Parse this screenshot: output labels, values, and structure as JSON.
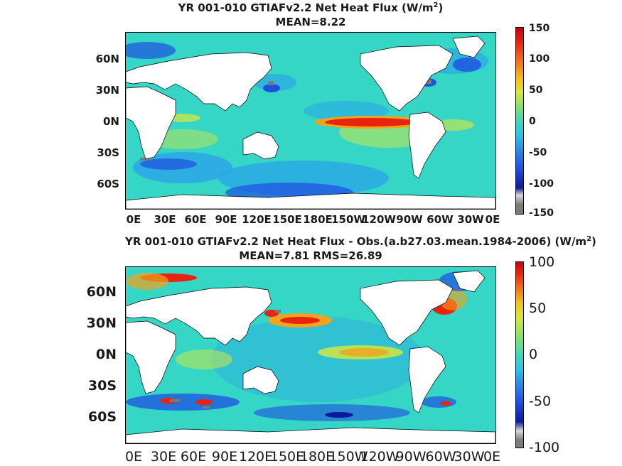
{
  "panels": [
    {
      "title_main": "YR 001-010 GTIAFv2.2  Net Heat Flux (W/m",
      "title_sup": "2",
      "title_end": ")",
      "subtitle": "MEAN=8.22",
      "lat_labels": [
        "60N",
        "30N",
        "0N",
        "30S",
        "60S"
      ],
      "lon_labels": [
        "0E",
        "30E",
        "60E",
        "90E",
        "120E",
        "150E",
        "180E",
        "150W",
        "120W",
        "90W",
        "60W",
        "30W",
        "0E"
      ],
      "colorbar_labels": [
        "150",
        "100",
        "50",
        "0",
        "-50",
        "-100",
        "-150"
      ],
      "colorbar_range": [
        -150,
        150
      ]
    },
    {
      "title_main": "YR 001-010 GTIAFv2.2  Net Heat Flux - Obs.(a.b27.03.mean.1984-2006) (W/m",
      "title_sup": "2",
      "title_end": ")",
      "subtitle": "MEAN=7.81 RMS=26.89",
      "lat_labels": [
        "60N",
        "30N",
        "0N",
        "30S",
        "60S"
      ],
      "lon_labels": [
        "0E",
        "30E",
        "60E",
        "90E",
        "120E",
        "150E",
        "180E",
        "150W",
        "120W",
        "90W",
        "60W",
        "30W",
        "0E"
      ],
      "colorbar_labels": [
        "100",
        "50",
        "0",
        "-50",
        "-100"
      ],
      "colorbar_range": [
        -100,
        100
      ]
    }
  ],
  "colors": {
    "ocean_base": "#35d6c6",
    "land": "#ffffff",
    "strong_positive": "#e8240f",
    "positive": "#f4a21c",
    "weak_positive": "#d8e83a",
    "neutral": "#44d6b6",
    "weak_negative": "#2ba6e6",
    "negative": "#1f4fe0",
    "strong_negative": "#0a1a9c",
    "below_range": "#7a7a7a"
  }
}
